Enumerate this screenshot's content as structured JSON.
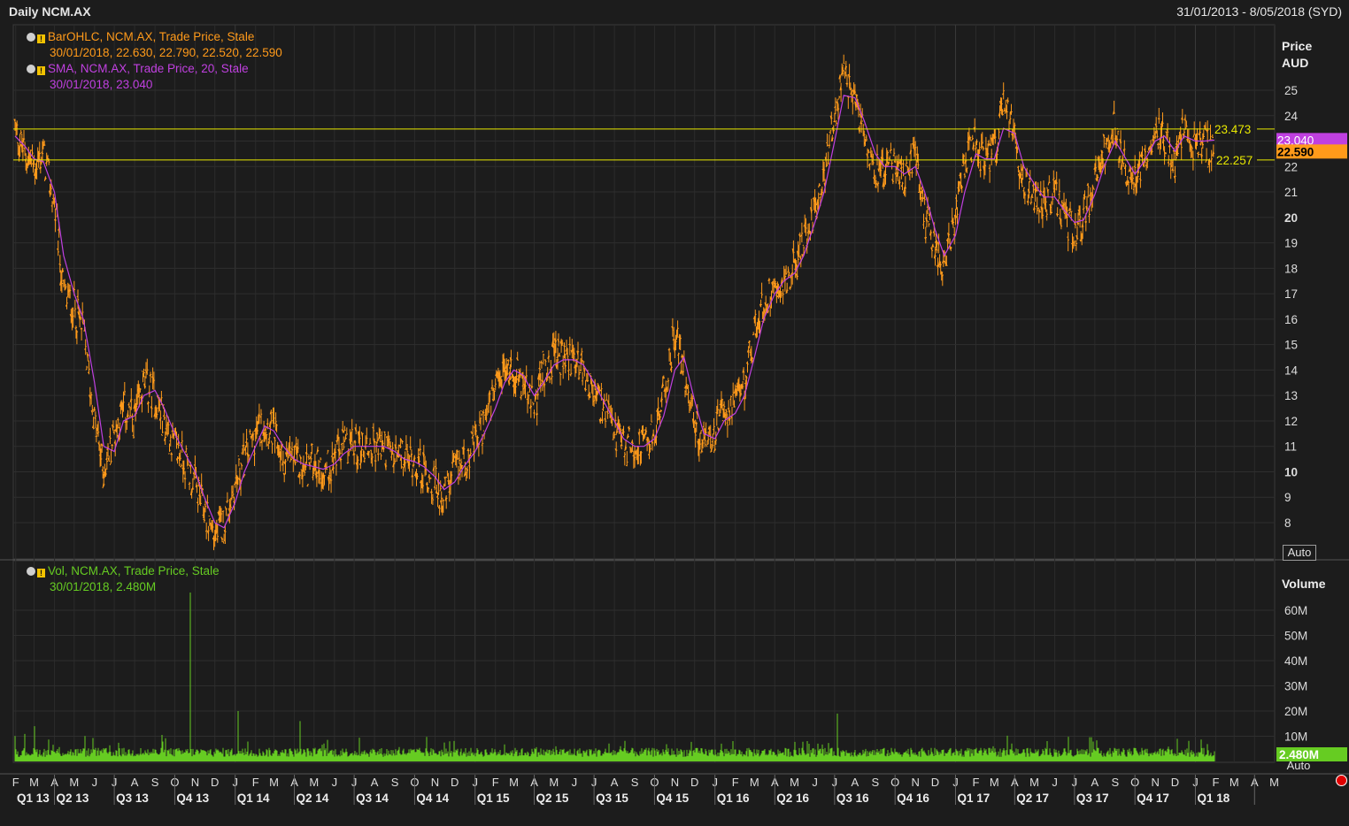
{
  "header": {
    "title": "Daily NCM.AX",
    "date_range": "31/01/2013 - 8/05/2018 (SYD)"
  },
  "legend": {
    "ohlc_label": "BarOHLC, NCM.AX, Trade Price, Stale",
    "ohlc_values": "30/01/2018, 22.630, 22.790, 22.520, 22.590",
    "sma_label": "SMA, NCM.AX, Trade Price, 20, Stale",
    "sma_values": "30/01/2018, 23.040",
    "vol_label": "Vol, NCM.AX, Trade Price, Stale",
    "vol_values": "30/01/2018, 2.480M"
  },
  "buttons": {
    "auto_price": "Auto",
    "auto_volume": "Auto"
  },
  "colors": {
    "price": "#ff9a1a",
    "sma": "#c040e0",
    "hline": "#e8e800",
    "volume": "#66cc22",
    "background": "#1c1c1c"
  },
  "chart_data": [
    {
      "type": "line",
      "title": "Daily NCM.AX",
      "ylabel": "Price",
      "yunit": "AUD",
      "ylim": [
        7,
        27
      ],
      "yticks": [
        8,
        9,
        10,
        11,
        12,
        13,
        14,
        15,
        16,
        17,
        18,
        19,
        20,
        21,
        22,
        23,
        24,
        25
      ],
      "yticks_bold": [
        10,
        20
      ],
      "series": [
        {
          "name": "BarOHLC, NCM.AX, Trade Price",
          "style": "ohlc",
          "x": [
            "2013-01-31",
            "2013-02-15",
            "2013-03-01",
            "2013-03-15",
            "2013-04-01",
            "2013-04-15",
            "2013-05-01",
            "2013-05-15",
            "2013-06-01",
            "2013-06-15",
            "2013-07-01",
            "2013-07-15",
            "2013-08-01",
            "2013-08-15",
            "2013-09-01",
            "2013-09-15",
            "2013-10-01",
            "2013-10-15",
            "2013-11-01",
            "2013-11-15",
            "2013-12-01",
            "2013-12-15",
            "2014-01-01",
            "2014-01-15",
            "2014-02-01",
            "2014-02-15",
            "2014-03-01",
            "2014-03-15",
            "2014-04-01",
            "2014-04-15",
            "2014-05-01",
            "2014-05-15",
            "2014-06-01",
            "2014-06-15",
            "2014-07-01",
            "2014-07-15",
            "2014-08-01",
            "2014-08-15",
            "2014-09-01",
            "2014-09-15",
            "2014-10-01",
            "2014-10-15",
            "2014-11-01",
            "2014-11-15",
            "2014-12-01",
            "2014-12-15",
            "2015-01-01",
            "2015-01-15",
            "2015-02-01",
            "2015-02-15",
            "2015-03-01",
            "2015-03-15",
            "2015-04-01",
            "2015-04-15",
            "2015-05-01",
            "2015-05-15",
            "2015-06-01",
            "2015-06-15",
            "2015-07-01",
            "2015-07-15",
            "2015-08-01",
            "2015-08-15",
            "2015-09-01",
            "2015-09-15",
            "2015-10-01",
            "2015-10-15",
            "2015-11-01",
            "2015-11-15",
            "2015-12-01",
            "2015-12-15",
            "2016-01-01",
            "2016-01-15",
            "2016-02-01",
            "2016-02-15",
            "2016-03-01",
            "2016-03-15",
            "2016-04-01",
            "2016-04-15",
            "2016-05-01",
            "2016-05-15",
            "2016-06-01",
            "2016-06-15",
            "2016-07-01",
            "2016-07-15",
            "2016-08-01",
            "2016-08-15",
            "2016-09-01",
            "2016-09-15",
            "2016-10-01",
            "2016-10-15",
            "2016-11-01",
            "2016-11-15",
            "2016-12-01",
            "2016-12-15",
            "2017-01-01",
            "2017-01-15",
            "2017-02-01",
            "2017-02-15",
            "2017-03-01",
            "2017-03-15",
            "2017-04-01",
            "2017-04-15",
            "2017-05-01",
            "2017-05-15",
            "2017-06-01",
            "2017-06-15",
            "2017-07-01",
            "2017-07-15",
            "2017-08-01",
            "2017-08-15",
            "2017-09-01",
            "2017-09-15",
            "2017-10-01",
            "2017-10-15",
            "2017-11-01",
            "2017-11-15",
            "2017-12-01",
            "2017-12-15",
            "2018-01-01",
            "2018-01-15",
            "2018-01-30"
          ],
          "values": [
            23.5,
            22.5,
            22.0,
            22.5,
            20.5,
            17.0,
            16.5,
            15.5,
            12.0,
            10.0,
            11.5,
            12.5,
            12.0,
            13.5,
            13.0,
            12.0,
            11.0,
            10.5,
            9.5,
            8.5,
            7.5,
            8.0,
            9.5,
            10.5,
            11.5,
            12.0,
            11.5,
            10.5,
            10.5,
            10.0,
            10.5,
            10.0,
            10.5,
            11.0,
            11.0,
            11.0,
            11.0,
            11.0,
            10.5,
            10.5,
            10.5,
            10.0,
            9.5,
            9.0,
            10.0,
            10.5,
            11.0,
            12.0,
            13.0,
            14.0,
            14.0,
            13.5,
            12.5,
            14.0,
            14.5,
            14.5,
            14.5,
            14.0,
            13.0,
            12.5,
            11.5,
            11.0,
            11.0,
            11.0,
            11.5,
            13.0,
            15.5,
            14.0,
            12.0,
            11.0,
            11.5,
            12.5,
            12.5,
            13.5,
            15.5,
            16.5,
            17.5,
            17.5,
            18.0,
            19.0,
            20.5,
            21.5,
            24.0,
            25.5,
            24.5,
            23.5,
            22.0,
            22.0,
            22.0,
            21.5,
            22.5,
            20.0,
            19.0,
            18.0,
            20.0,
            22.0,
            23.0,
            22.0,
            22.5,
            24.5,
            23.0,
            21.5,
            21.0,
            20.5,
            21.0,
            20.0,
            19.5,
            20.0,
            21.5,
            22.5,
            23.5,
            22.0,
            21.5,
            22.5,
            23.5,
            23.0,
            22.0,
            23.5,
            22.8,
            22.9,
            22.59
          ]
        },
        {
          "name": "SMA, NCM.AX, Trade Price, 20",
          "style": "line",
          "x": [
            "2013-01-31",
            "2013-02-15",
            "2013-03-01",
            "2013-03-15",
            "2013-04-01",
            "2013-04-15",
            "2013-05-01",
            "2013-05-15",
            "2013-06-01",
            "2013-06-15",
            "2013-07-01",
            "2013-07-15",
            "2013-08-01",
            "2013-08-15",
            "2013-09-01",
            "2013-09-15",
            "2013-10-01",
            "2013-10-15",
            "2013-11-01",
            "2013-11-15",
            "2013-12-01",
            "2013-12-15",
            "2014-01-01",
            "2014-01-15",
            "2014-02-01",
            "2014-02-15",
            "2014-03-01",
            "2014-03-15",
            "2014-04-01",
            "2014-04-15",
            "2014-05-01",
            "2014-05-15",
            "2014-06-01",
            "2014-06-15",
            "2014-07-01",
            "2014-07-15",
            "2014-08-01",
            "2014-08-15",
            "2014-09-01",
            "2014-09-15",
            "2014-10-01",
            "2014-10-15",
            "2014-11-01",
            "2014-11-15",
            "2014-12-01",
            "2014-12-15",
            "2015-01-01",
            "2015-01-15",
            "2015-02-01",
            "2015-02-15",
            "2015-03-01",
            "2015-03-15",
            "2015-04-01",
            "2015-04-15",
            "2015-05-01",
            "2015-05-15",
            "2015-06-01",
            "2015-06-15",
            "2015-07-01",
            "2015-07-15",
            "2015-08-01",
            "2015-08-15",
            "2015-09-01",
            "2015-09-15",
            "2015-10-01",
            "2015-10-15",
            "2015-11-01",
            "2015-11-15",
            "2015-12-01",
            "2015-12-15",
            "2016-01-01",
            "2016-01-15",
            "2016-02-01",
            "2016-02-15",
            "2016-03-01",
            "2016-03-15",
            "2016-04-01",
            "2016-04-15",
            "2016-05-01",
            "2016-05-15",
            "2016-06-01",
            "2016-06-15",
            "2016-07-01",
            "2016-07-15",
            "2016-08-01",
            "2016-08-15",
            "2016-09-01",
            "2016-09-15",
            "2016-10-01",
            "2016-10-15",
            "2016-11-01",
            "2016-11-15",
            "2016-12-01",
            "2016-12-15",
            "2017-01-01",
            "2017-01-15",
            "2017-02-01",
            "2017-02-15",
            "2017-03-01",
            "2017-03-15",
            "2017-04-01",
            "2017-04-15",
            "2017-05-01",
            "2017-05-15",
            "2017-06-01",
            "2017-06-15",
            "2017-07-01",
            "2017-07-15",
            "2017-08-01",
            "2017-08-15",
            "2017-09-01",
            "2017-09-15",
            "2017-10-01",
            "2017-10-15",
            "2017-11-01",
            "2017-11-15",
            "2017-12-01",
            "2017-12-15",
            "2018-01-01",
            "2018-01-15",
            "2018-01-30"
          ],
          "values": [
            23.2,
            22.8,
            22.3,
            22.2,
            21.0,
            18.5,
            17.0,
            16.0,
            13.5,
            11.0,
            10.8,
            12.0,
            12.2,
            13.0,
            13.2,
            12.5,
            11.5,
            10.8,
            10.0,
            9.0,
            8.0,
            7.8,
            8.8,
            10.0,
            11.0,
            11.8,
            11.6,
            11.0,
            10.5,
            10.3,
            10.2,
            10.1,
            10.3,
            10.7,
            11.0,
            11.0,
            11.0,
            11.0,
            10.8,
            10.5,
            10.4,
            10.2,
            9.8,
            9.3,
            9.6,
            10.2,
            10.8,
            11.5,
            12.5,
            13.5,
            14.0,
            13.8,
            13.0,
            13.5,
            14.2,
            14.4,
            14.4,
            14.2,
            13.5,
            12.8,
            12.0,
            11.3,
            11.0,
            11.0,
            11.3,
            12.2,
            14.0,
            14.5,
            12.8,
            11.5,
            11.3,
            12.0,
            12.3,
            13.0,
            14.5,
            16.0,
            17.0,
            17.5,
            17.8,
            18.5,
            19.8,
            21.0,
            23.0,
            24.8,
            24.7,
            23.8,
            22.5,
            22.0,
            22.0,
            21.7,
            22.0,
            21.0,
            19.5,
            18.5,
            19.3,
            21.0,
            22.5,
            22.3,
            22.3,
            23.5,
            23.3,
            22.0,
            21.3,
            20.8,
            20.8,
            20.3,
            19.8,
            19.9,
            20.9,
            22.0,
            23.0,
            22.4,
            21.7,
            22.2,
            23.0,
            23.2,
            22.6,
            23.2,
            23.0,
            23.0,
            23.04
          ]
        }
      ],
      "reference_lines": [
        23.473,
        22.257
      ],
      "last_labels": {
        "sma": "23.040",
        "price": "22.590"
      }
    },
    {
      "type": "bar",
      "title": "",
      "ylabel": "Volume",
      "ylim": [
        0,
        70
      ],
      "yunit": "M",
      "ytick_labels": [
        "10M",
        "20M",
        "30M",
        "40M",
        "50M",
        "60M"
      ],
      "series": [
        {
          "name": "Vol, NCM.AX, Trade Price",
          "baseline_mean": 4.0,
          "spikes": [
            {
              "x": "2013-10-25",
              "value": 67.0
            },
            {
              "x": "2014-01-05",
              "value": 20.0
            },
            {
              "x": "2016-07-05",
              "value": 19.0
            },
            {
              "x": "2014-04-10",
              "value": 16.0
            },
            {
              "x": "2013-03-01",
              "value": 14.0
            },
            {
              "x": "2017-12-05",
              "value": 9.0
            }
          ]
        }
      ],
      "last_label": "2.480M"
    }
  ],
  "x_axis": {
    "month_labels": [
      "F",
      "M",
      "A",
      "M",
      "J",
      "J",
      "A",
      "S",
      "O",
      "N",
      "D",
      "J",
      "F",
      "M",
      "A",
      "M",
      "J",
      "J",
      "A",
      "S",
      "O",
      "N",
      "D",
      "J",
      "F",
      "M",
      "A",
      "M",
      "J",
      "J",
      "A",
      "S",
      "O",
      "N",
      "D",
      "J",
      "F",
      "M",
      "A",
      "M",
      "J",
      "J",
      "A",
      "S",
      "O",
      "N",
      "D",
      "J",
      "F",
      "M",
      "A",
      "M",
      "J",
      "J",
      "A",
      "S",
      "O",
      "N",
      "D",
      "J",
      "F",
      "M",
      "A",
      "M"
    ],
    "quarter_labels": [
      "Q1 13",
      "Q2 13",
      "Q3 13",
      "Q4 13",
      "Q1 14",
      "Q2 14",
      "Q3 14",
      "Q4 14",
      "Q1 15",
      "Q2 15",
      "Q3 15",
      "Q4 15",
      "Q1 16",
      "Q2 16",
      "Q3 16",
      "Q4 16",
      "Q1 17",
      "Q2 17",
      "Q3 17",
      "Q4 17",
      "Q1 18"
    ]
  }
}
